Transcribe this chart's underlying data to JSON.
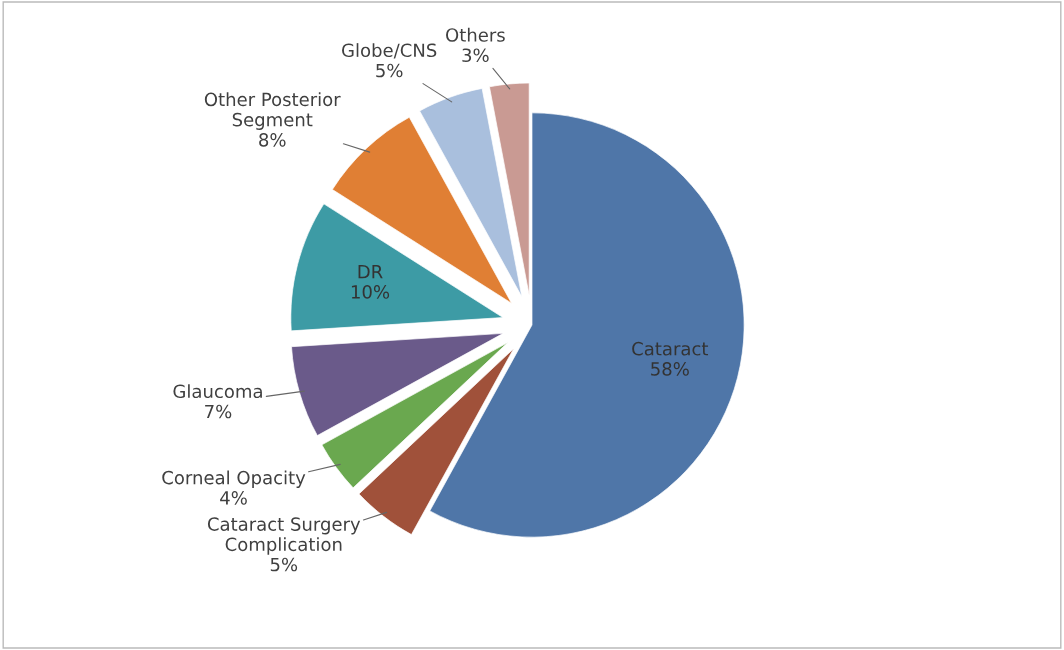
{
  "chart_data": {
    "type": "pie",
    "categories": [
      "Cataract",
      "Cataract Surgery\nComplication",
      "Corneal Opacity",
      "Glaucoma",
      "DR",
      "Other Posterior\nSegment",
      "Globe/CNS",
      "Others"
    ],
    "values": [
      58,
      5,
      4,
      7,
      10,
      8,
      5,
      3
    ],
    "colors": [
      "#4f76a8",
      "#a0513a",
      "#6aa84f",
      "#6a5a8a",
      "#3d9ba5",
      "#e07f34",
      "#a9bfdd",
      "#c99a93"
    ],
    "value_labels": [
      "58%",
      "5%",
      "4%",
      "7%",
      "10%",
      "8%",
      "5%",
      "3%"
    ],
    "legend": false
  }
}
